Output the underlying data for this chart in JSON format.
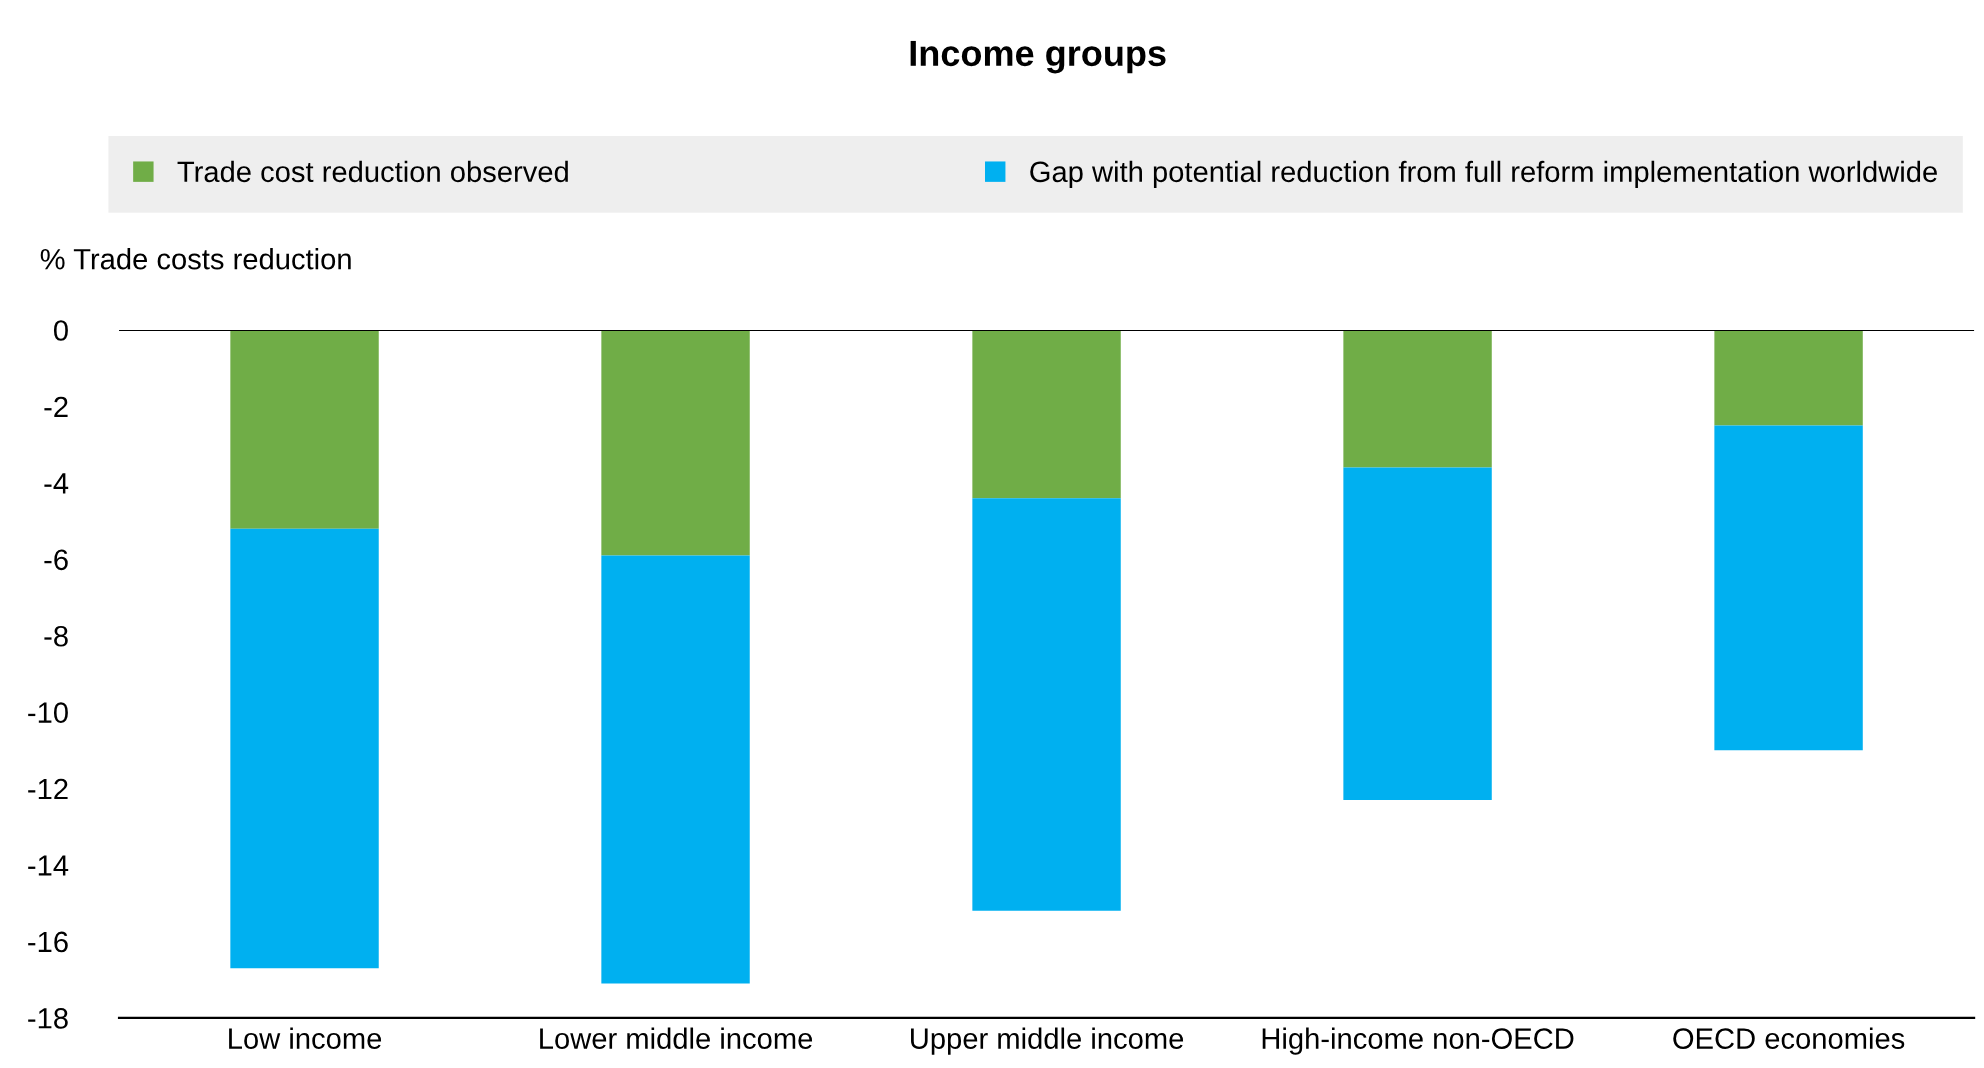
{
  "chart_data": {
    "type": "bar",
    "title": "Income groups",
    "ylabel": "% Trade costs reduction",
    "stacked": true,
    "categories": [
      "Low income",
      "Lower middle income",
      "Upper middle income",
      "High-income non-OECD",
      "OECD economies"
    ],
    "series": [
      {
        "name": "Trade cost reduction observed",
        "color": "#70ad47",
        "values": [
          -5.2,
          -5.9,
          -4.4,
          -3.6,
          -2.5
        ]
      },
      {
        "name": "Gap with potential reduction from full reform implementation worldwide",
        "color": "#00b0f0",
        "values": [
          -11.5,
          -11.2,
          -10.8,
          -8.7,
          -8.5
        ]
      }
    ],
    "ylim": [
      -18,
      0
    ],
    "yticks": [
      0,
      -2,
      -4,
      -6,
      -8,
      -10,
      -12,
      -14,
      -16,
      -18
    ],
    "grid": false,
    "legend": "top"
  }
}
